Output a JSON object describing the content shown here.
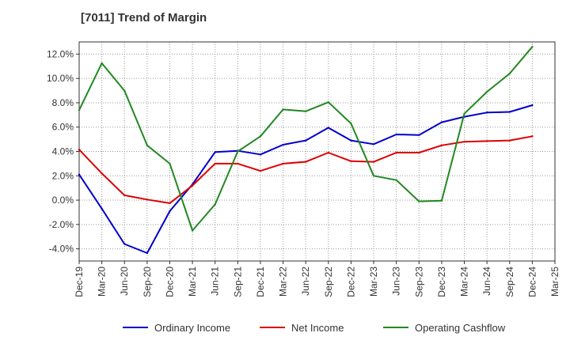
{
  "title": "[7011]  Trend of Margin",
  "chart_data": {
    "type": "line",
    "title": "[7011]  Trend of Margin",
    "xlabel": "",
    "ylabel": "",
    "categories": [
      "Dec-19",
      "Mar-20",
      "Jun-20",
      "Sep-20",
      "Dec-20",
      "Mar-21",
      "Jun-21",
      "Sep-21",
      "Dec-21",
      "Mar-22",
      "Jun-22",
      "Sep-22",
      "Dec-22",
      "Mar-23",
      "Jun-23",
      "Sep-23",
      "Dec-23",
      "Mar-24",
      "Jun-24",
      "Sep-24",
      "Dec-24",
      "Mar-25"
    ],
    "ylim": [
      -5,
      13
    ],
    "yticks": [
      -4,
      -2,
      0,
      2,
      4,
      6,
      8,
      10,
      12
    ],
    "ytick_labels": [
      "-4.0%",
      "-2.0%",
      "0.0%",
      "2.0%",
      "4.0%",
      "6.0%",
      "8.0%",
      "10.0%",
      "12.0%"
    ],
    "grid": true,
    "legend_position": "bottom",
    "series": [
      {
        "name": "Ordinary Income",
        "color": "#0000cc",
        "values": [
          2.1,
          -0.7,
          -3.6,
          -4.35,
          -0.9,
          1.3,
          3.95,
          4.05,
          3.75,
          4.55,
          4.9,
          5.95,
          4.9,
          4.6,
          5.4,
          5.35,
          6.4,
          6.85,
          7.2,
          7.25,
          7.8,
          null
        ]
      },
      {
        "name": "Net Income",
        "color": "#dd0000",
        "values": [
          4.15,
          2.2,
          0.4,
          0.05,
          -0.25,
          1.2,
          3.0,
          3.0,
          2.4,
          3.0,
          3.15,
          3.9,
          3.2,
          3.15,
          3.9,
          3.9,
          4.5,
          4.8,
          4.85,
          4.9,
          5.25,
          null
        ]
      },
      {
        "name": "Operating Cashflow",
        "color": "#228822",
        "values": [
          7.4,
          11.25,
          9.0,
          4.5,
          3.0,
          -2.5,
          -0.35,
          4.0,
          5.25,
          7.45,
          7.3,
          8.05,
          6.3,
          2.0,
          1.65,
          -0.1,
          -0.05,
          7.1,
          8.9,
          10.4,
          12.6,
          null
        ]
      }
    ]
  }
}
